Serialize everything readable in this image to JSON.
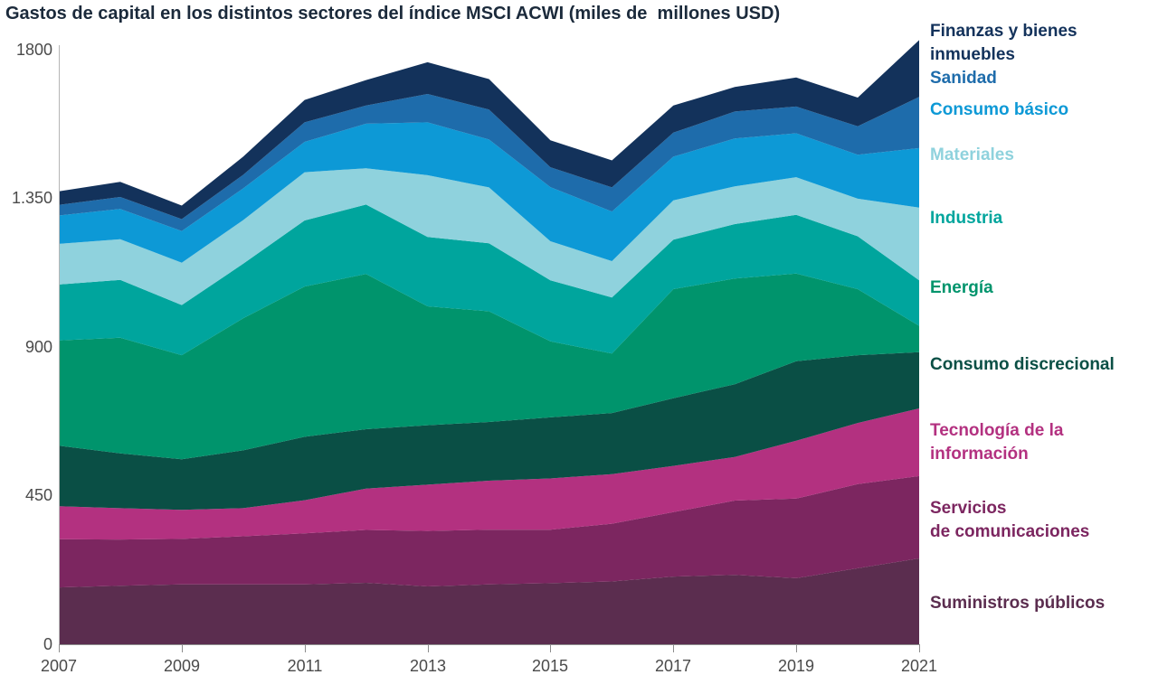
{
  "title": "Gastos de capital en los distintos sectores del índice MSCI ACWI (miles de  millones USD)",
  "y_axis": {
    "tick_labels": [
      "1800",
      "1.350",
      "900",
      "450",
      "0"
    ]
  },
  "x_axis": {
    "tick_labels": [
      "2007",
      "2009",
      "2011",
      "2013",
      "2015",
      "2017",
      "2019",
      "2021"
    ]
  },
  "legend": {
    "position": "right",
    "items": [
      {
        "label": "Finanzas y bienes\ninmuebles",
        "color": "#13325b"
      },
      {
        "label": "Sanidad",
        "color": "#1e6cab"
      },
      {
        "label": "Consumo básico",
        "color": "#0d99d6"
      },
      {
        "label": "Materiales",
        "color": "#8fd2dd"
      },
      {
        "label": "Industria",
        "color": "#00a59d"
      },
      {
        "label": "Energía",
        "color": "#00946c"
      },
      {
        "label": "Consumo discrecional",
        "color": "#0a4f45"
      },
      {
        "label": "Tecnología de la\ninformación",
        "color": "#b33180"
      },
      {
        "label": "Servicios\nde comunicaciones",
        "color": "#7c2660"
      },
      {
        "label": "Suministros públicos",
        "color": "#5b2d4f"
      }
    ]
  },
  "chart_data": {
    "type": "area",
    "stacked": true,
    "title": "Gastos de capital en los distintos sectores del índice MSCI ACWI (miles de millones USD)",
    "xlabel": "",
    "ylabel": "",
    "x": [
      2007,
      2008,
      2009,
      2010,
      2011,
      2012,
      2013,
      2014,
      2015,
      2016,
      2017,
      2018,
      2019,
      2020,
      2021
    ],
    "x_tick_labels": [
      "2007",
      "2009",
      "2011",
      "2013",
      "2015",
      "2017",
      "2019",
      "2021"
    ],
    "ylim": [
      0,
      1800
    ],
    "y_ticks": [
      0,
      450,
      900,
      1350,
      1800
    ],
    "y_tick_labels": [
      "0",
      "450",
      "900",
      "1.350",
      "1800"
    ],
    "grid": false,
    "legend_position": "right",
    "series_order": "bottom-to-top",
    "series": [
      {
        "name": "Suministros públicos",
        "slug": "suministros-publicos",
        "color": "#5b2d4f",
        "values": [
          172,
          177,
          181,
          181,
          181,
          186,
          175,
          181,
          185,
          190,
          205,
          210,
          200,
          230,
          260
        ]
      },
      {
        "name": "Servicios de comunicaciones",
        "slug": "servicios-de-comunicaciones",
        "color": "#7c2660",
        "values": [
          146,
          140,
          138,
          146,
          155,
          160,
          168,
          166,
          162,
          175,
          195,
          225,
          241,
          255,
          249
        ]
      },
      {
        "name": "Tecnología de la información",
        "slug": "tecnologia-de-la-informacion",
        "color": "#b33180",
        "values": [
          100,
          95,
          88,
          85,
          100,
          125,
          140,
          148,
          155,
          150,
          140,
          132,
          175,
          185,
          205
        ]
      },
      {
        "name": "Consumo discrecional",
        "slug": "consumo-discrecional",
        "color": "#0a4f45",
        "values": [
          183,
          166,
          153,
          175,
          192,
          180,
          180,
          178,
          185,
          185,
          205,
          220,
          241,
          205,
          170
        ]
      },
      {
        "name": "Energía",
        "slug": "energia",
        "color": "#00946c",
        "values": [
          319,
          350,
          315,
          400,
          455,
          470,
          360,
          335,
          230,
          180,
          330,
          320,
          265,
          200,
          80
        ]
      },
      {
        "name": "Industria",
        "slug": "industria",
        "color": "#00a59d",
        "values": [
          169,
          175,
          152,
          165,
          200,
          210,
          210,
          206,
          185,
          170,
          150,
          165,
          178,
          160,
          138
        ]
      },
      {
        "name": "Materiales",
        "slug": "materiales",
        "color": "#8fd2dd",
        "values": [
          123,
          123,
          128,
          132,
          146,
          110,
          187,
          169,
          118,
          110,
          119,
          114,
          114,
          114,
          220
        ]
      },
      {
        "name": "Consumo básico",
        "slug": "consumo-basico",
        "color": "#0d99d6",
        "values": [
          86,
          92,
          96,
          96,
          92,
          135,
          160,
          145,
          164,
          150,
          132,
          145,
          133,
          133,
          180
        ]
      },
      {
        "name": "Sanidad",
        "slug": "sanidad",
        "color": "#1e6cab",
        "values": [
          32,
          36,
          36,
          41,
          59,
          55,
          86,
          91,
          60,
          73,
          73,
          82,
          81,
          86,
          155
        ]
      },
      {
        "name": "Finanzas y bienes inmuebles",
        "slug": "finanzas-y-bienes-inmuebles",
        "color": "#13325b",
        "values": [
          41,
          46,
          41,
          55,
          68,
          77,
          96,
          92,
          82,
          82,
          82,
          74,
          88,
          87,
          172
        ]
      }
    ]
  }
}
